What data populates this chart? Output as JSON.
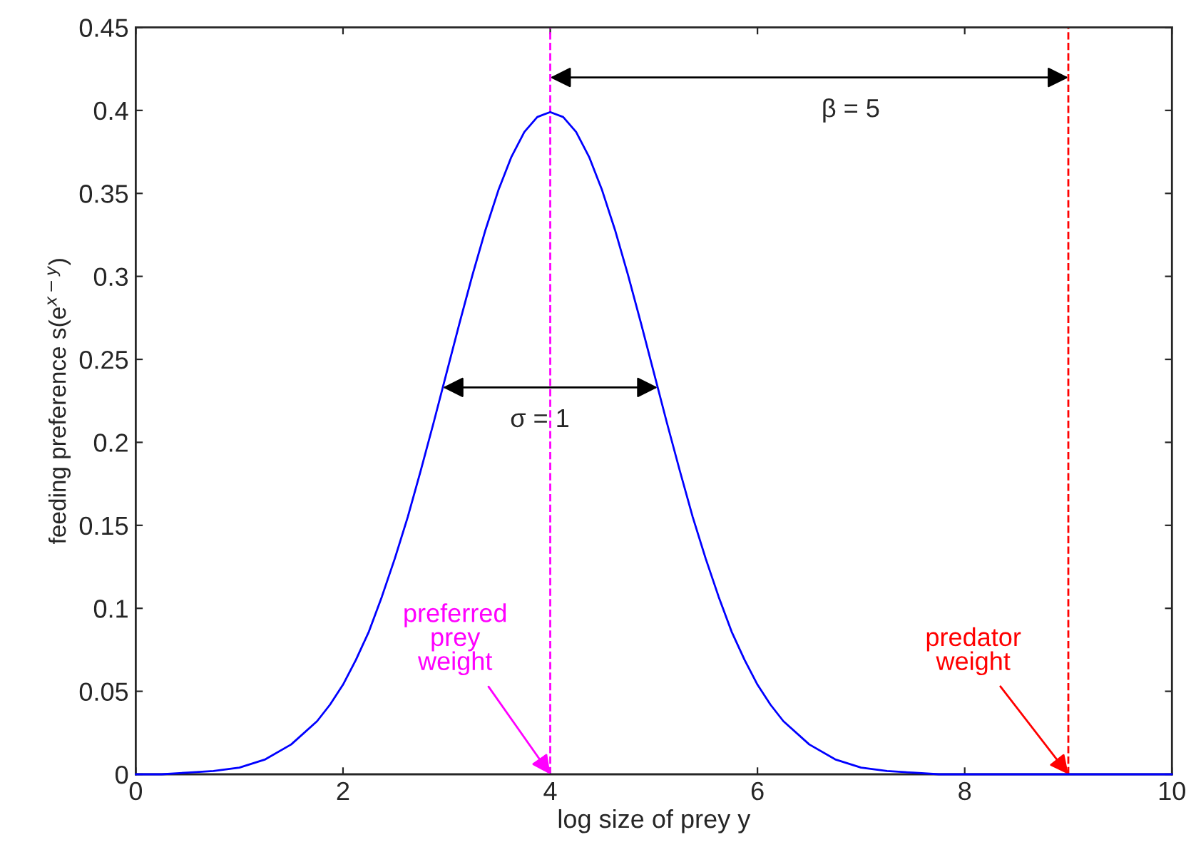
{
  "chart_data": {
    "type": "line",
    "xlabel": "log size of prey y",
    "ylabel": "feeding preference s(e$^{x−y}$)",
    "x": [
      0,
      0.25,
      0.5,
      0.75,
      1,
      1.25,
      1.5,
      1.75,
      1.875,
      2,
      2.125,
      2.25,
      2.375,
      2.5,
      2.625,
      2.75,
      2.875,
      3,
      3.125,
      3.25,
      3.375,
      3.5,
      3.625,
      3.75,
      3.875,
      4,
      4.125,
      4.25,
      4.375,
      4.5,
      4.625,
      4.75,
      4.875,
      5,
      5.125,
      5.25,
      5.375,
      5.5,
      5.625,
      5.75,
      5.875,
      6,
      6.125,
      6.25,
      6.5,
      6.75,
      7,
      7.25,
      7.5,
      7.75,
      8,
      8.5,
      9,
      9.5,
      10
    ],
    "series": [
      {
        "color": "#0000ff",
        "values": [
          0.0,
          0.0,
          0.001,
          0.002,
          0.004,
          0.009,
          0.018,
          0.032,
          0.042,
          0.054,
          0.069,
          0.086,
          0.107,
          0.13,
          0.155,
          0.183,
          0.212,
          0.242,
          0.272,
          0.301,
          0.328,
          0.352,
          0.372,
          0.387,
          0.396,
          0.399,
          0.396,
          0.387,
          0.372,
          0.352,
          0.328,
          0.301,
          0.272,
          0.242,
          0.212,
          0.183,
          0.155,
          0.13,
          0.107,
          0.086,
          0.069,
          0.054,
          0.042,
          0.032,
          0.018,
          0.009,
          0.004,
          0.002,
          0.001,
          0.0,
          0.0,
          0.0,
          0.0,
          0.0,
          0.0
        ]
      }
    ],
    "xlim": [
      0,
      10
    ],
    "xticks": [
      0,
      2,
      4,
      6,
      8,
      10
    ],
    "ylim": [
      0,
      0.45
    ],
    "yticks": [
      0,
      0.05,
      0.1,
      0.15,
      0.2,
      0.25,
      0.3,
      0.35,
      0.4,
      0.45
    ],
    "grid": false,
    "legend": false,
    "marker": "none",
    "line_style": "solid",
    "ref_lines": [
      {
        "axis": "x",
        "value": 4,
        "color": "#ff00ff",
        "line_style": "dashed"
      },
      {
        "axis": "x",
        "value": 9,
        "color": "#ff0000",
        "line_style": "dashed"
      }
    ],
    "annotations": [
      "β = 5",
      "σ = 1",
      {
        "text": "preferred\nprey\nweight",
        "x": 4,
        "y": 0
      },
      {
        "text": "predator\nweight",
        "x": 9,
        "y": 0
      }
    ]
  }
}
